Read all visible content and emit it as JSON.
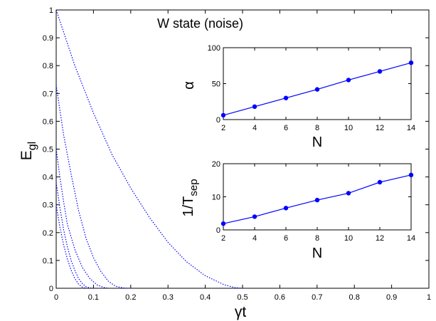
{
  "chart_data": [
    {
      "id": "main",
      "type": "line",
      "title": "W state (noise)",
      "xlabel": "γt",
      "ylabel": "E",
      "ylabel_sub": "gl",
      "xlim": [
        0,
        1
      ],
      "ylim": [
        0,
        1
      ],
      "xticks": [
        "0",
        "0.1",
        "0.2",
        "0.3",
        "0.4",
        "0.5",
        "0.6",
        "0.7",
        "0.8",
        "0.9",
        "1"
      ],
      "yticks": [
        "0",
        "0.1",
        "0.2",
        "0.3",
        "0.4",
        "0.5",
        "0.6",
        "0.7",
        "0.8",
        "0.9",
        "1"
      ],
      "line_style": "dotted",
      "color": "#0000ff",
      "series": [
        {
          "values": [
            [
              0,
              1.0
            ],
            [
              0.05,
              0.8
            ],
            [
              0.1,
              0.63
            ],
            [
              0.15,
              0.48
            ],
            [
              0.2,
              0.36
            ],
            [
              0.25,
              0.255
            ],
            [
              0.3,
              0.165
            ],
            [
              0.35,
              0.095
            ],
            [
              0.4,
              0.045
            ],
            [
              0.45,
              0.013
            ],
            [
              0.48,
              0.002
            ],
            [
              0.5,
              0
            ]
          ]
        },
        {
          "values": [
            [
              0,
              0.73
            ],
            [
              0.02,
              0.55
            ],
            [
              0.04,
              0.41
            ],
            [
              0.06,
              0.28
            ],
            [
              0.08,
              0.18
            ],
            [
              0.1,
              0.11
            ],
            [
              0.12,
              0.06
            ],
            [
              0.14,
              0.025
            ],
            [
              0.16,
              0.007
            ],
            [
              0.18,
              0.001
            ],
            [
              0.2,
              0
            ]
          ]
        },
        {
          "values": [
            [
              0,
              0.5
            ],
            [
              0.01,
              0.4
            ],
            [
              0.02,
              0.31
            ],
            [
              0.03,
              0.23
            ],
            [
              0.05,
              0.14
            ],
            [
              0.07,
              0.075
            ],
            [
              0.09,
              0.035
            ],
            [
              0.11,
              0.012
            ],
            [
              0.13,
              0.002
            ],
            [
              0.14,
              0
            ]
          ]
        },
        {
          "values": [
            [
              0,
              0.38
            ],
            [
              0.01,
              0.29
            ],
            [
              0.02,
              0.21
            ],
            [
              0.03,
              0.15
            ],
            [
              0.04,
              0.1
            ],
            [
              0.05,
              0.065
            ],
            [
              0.06,
              0.035
            ],
            [
              0.07,
              0.017
            ],
            [
              0.08,
              0.006
            ],
            [
              0.09,
              0.001
            ],
            [
              0.1,
              0
            ]
          ]
        },
        {
          "values": [
            [
              0,
              0.3
            ],
            [
              0.01,
              0.22
            ],
            [
              0.02,
              0.155
            ],
            [
              0.03,
              0.105
            ],
            [
              0.04,
              0.065
            ],
            [
              0.05,
              0.035
            ],
            [
              0.06,
              0.015
            ],
            [
              0.07,
              0.004
            ],
            [
              0.08,
              0
            ]
          ]
        }
      ]
    },
    {
      "id": "inset-alpha",
      "type": "line",
      "xlabel": "N",
      "ylabel": "α",
      "xlim": [
        2,
        14
      ],
      "ylim": [
        0,
        100
      ],
      "xticks": [
        "2",
        "4",
        "6",
        "8",
        "10",
        "12",
        "14"
      ],
      "yticks": [
        "0",
        "50",
        "100"
      ],
      "color": "#0000ff",
      "x": [
        2,
        4,
        6,
        8,
        10,
        12,
        14
      ],
      "values": [
        6,
        18,
        30,
        42,
        55,
        67,
        79
      ]
    },
    {
      "id": "inset-tsep",
      "type": "line",
      "xlabel": "N",
      "ylabel": "1/T",
      "ylabel_sub": "sep",
      "xlim": [
        2,
        14
      ],
      "ylim": [
        0,
        20
      ],
      "xticks": [
        "2",
        "4",
        "6",
        "8",
        "10",
        "12",
        "14"
      ],
      "yticks": [
        "0",
        "10",
        "20"
      ],
      "color": "#0000ff",
      "x": [
        2,
        4,
        6,
        8,
        10,
        12,
        14
      ],
      "values": [
        1.9,
        4.0,
        6.6,
        9.0,
        11.1,
        14.4,
        16.6
      ]
    }
  ]
}
